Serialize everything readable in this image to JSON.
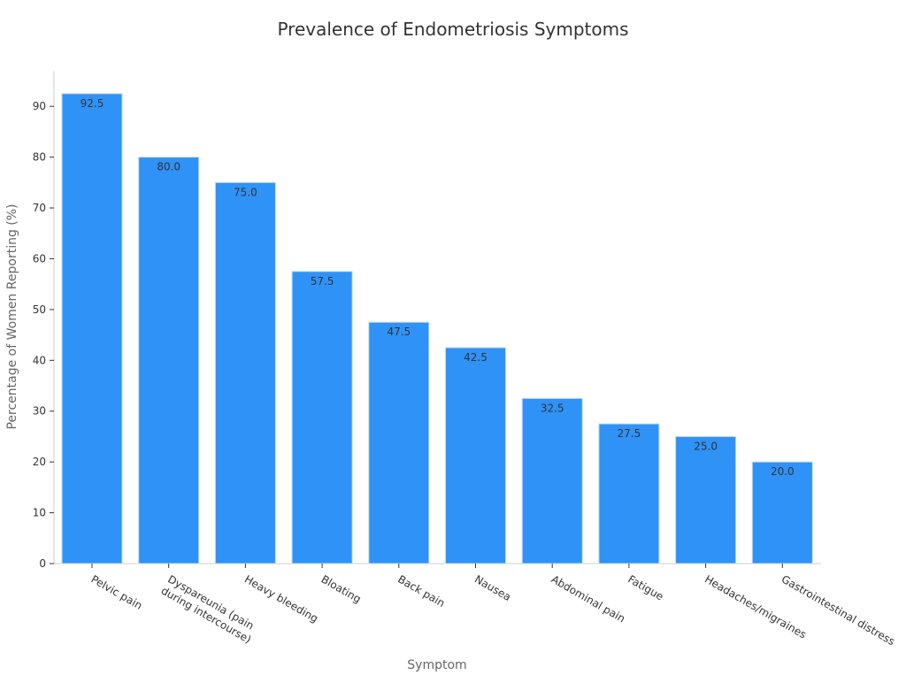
{
  "chart_data": {
    "type": "bar",
    "title": "Prevalence of Endometriosis Symptoms",
    "xlabel": "Symptom",
    "ylabel": "Percentage of Women Reporting (%)",
    "ylim": [
      0,
      97
    ],
    "yticks": [
      0,
      10,
      20,
      30,
      40,
      50,
      60,
      70,
      80,
      90
    ],
    "grid": false,
    "categories": [
      "Pelvic pain",
      "Dyspareunia (pain\nduring intercourse)",
      "Heavy bleeding",
      "Bloating",
      "Back pain",
      "Nausea",
      "Abdominal pain",
      "Fatigue",
      "Headaches/migraines",
      "Gastrointestinal distress"
    ],
    "values": [
      92.5,
      80.0,
      75.0,
      57.5,
      47.5,
      42.5,
      32.5,
      27.5,
      25.0,
      20.0
    ],
    "data_labels": [
      "92.5",
      "80.0",
      "75.0",
      "57.5",
      "47.5",
      "42.5",
      "32.5",
      "27.5",
      "25.0",
      "20.0"
    ],
    "colors": {
      "bar": "#2f92f7",
      "bar_edge": "#c7d9ef"
    }
  }
}
